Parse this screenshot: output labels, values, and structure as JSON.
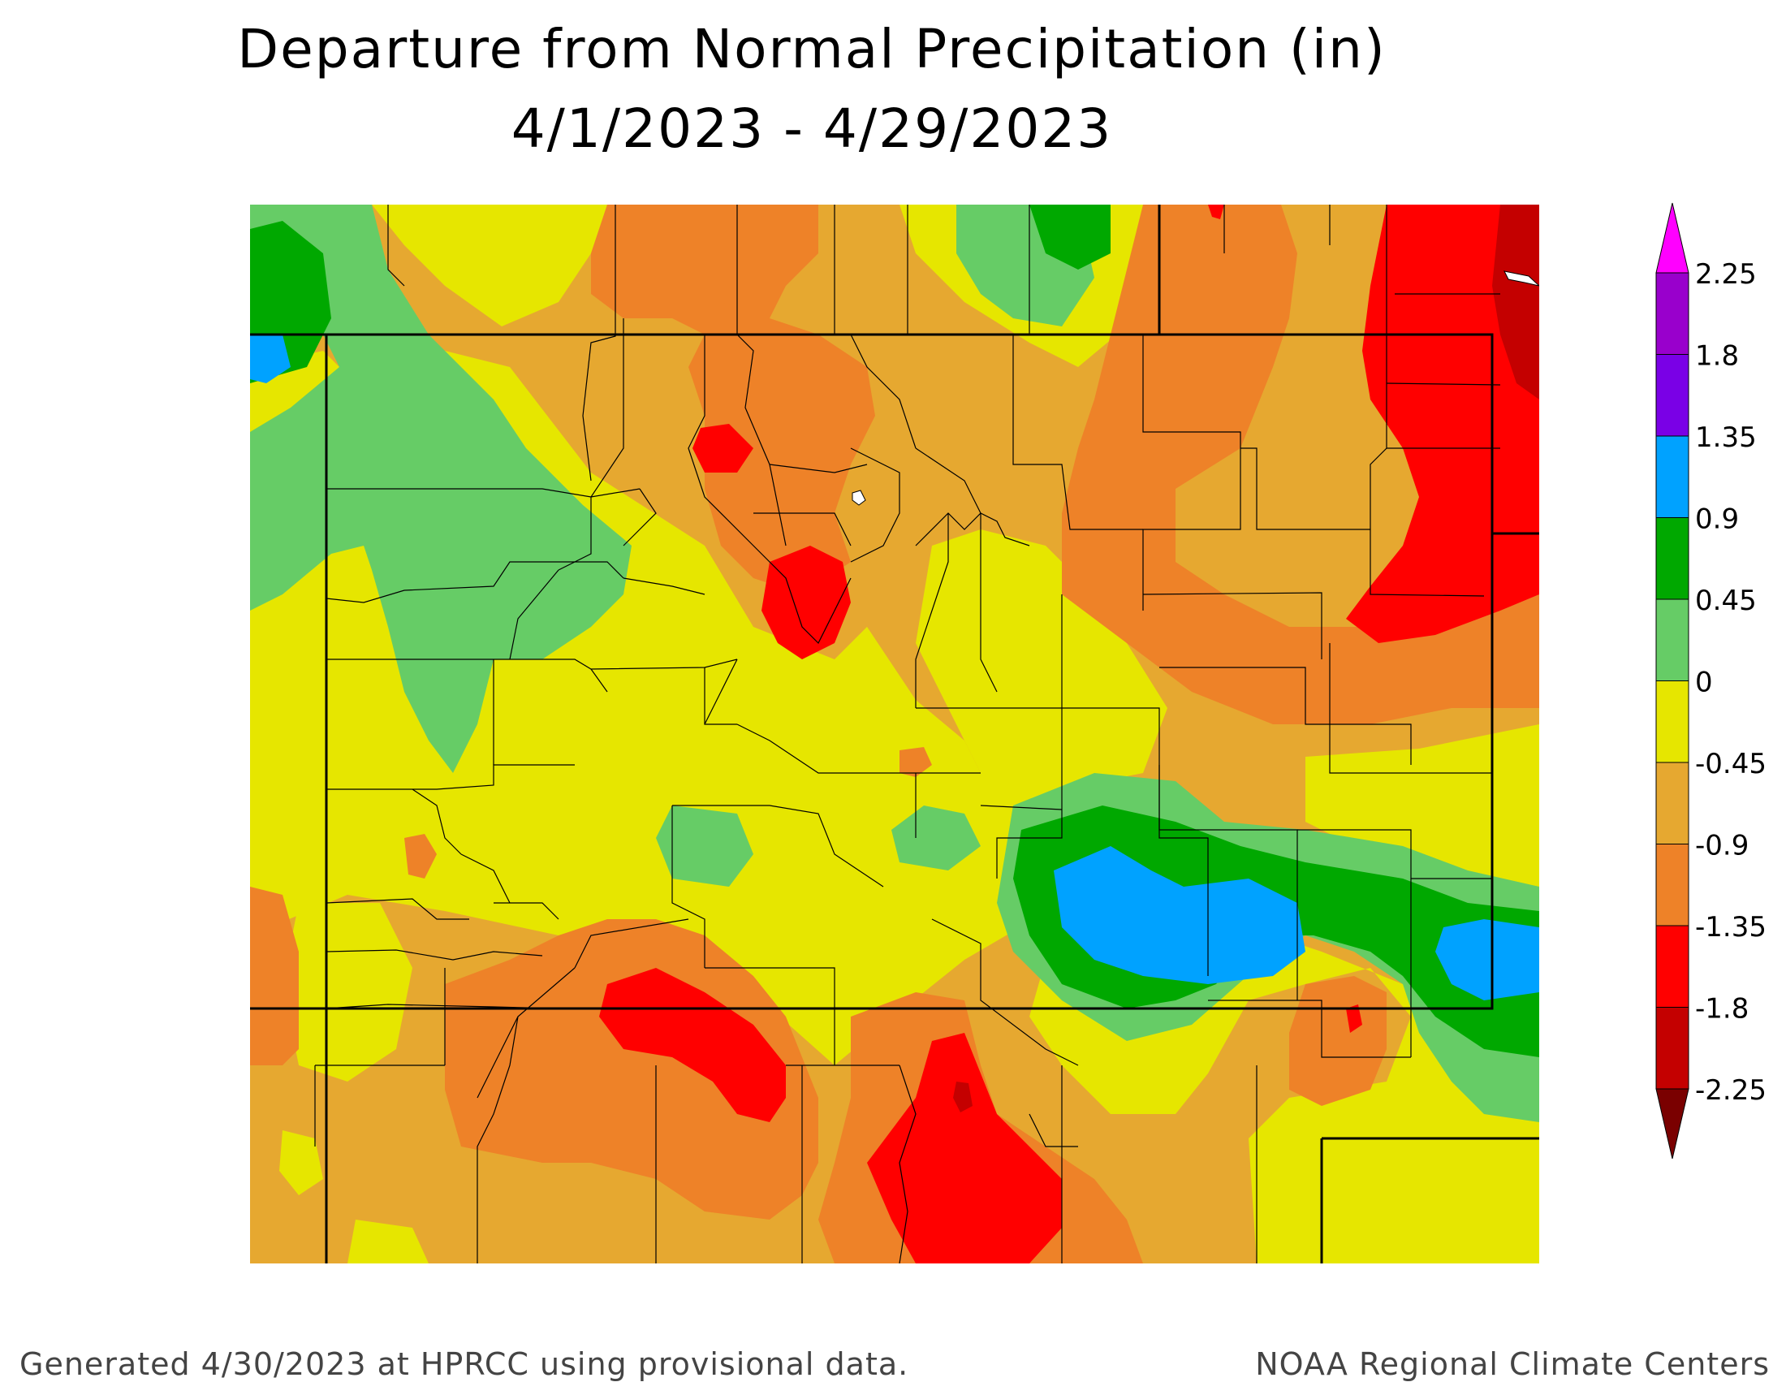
{
  "title": "Departure from Normal Precipitation (in)",
  "subtitle": "4/1/2023 - 4/29/2023",
  "footer": {
    "left": "Generated 4/30/2023 at HPRCC using provisional data.",
    "right": "NOAA Regional Climate Centers"
  },
  "legend": {
    "labels": [
      "2.25",
      "1.8",
      "1.35",
      "0.9",
      "0.45",
      "0",
      "-0.45",
      "-0.9",
      "-1.35",
      "-1.8",
      "-2.25"
    ],
    "colors": [
      "#ff00ff",
      "#9900cc",
      "#7a00e6",
      "#00a2ff",
      "#00a800",
      "#66cc66",
      "#e6e600",
      "#e6a830",
      "#ee8228",
      "#ff0000",
      "#c40000",
      "#7a0000"
    ]
  },
  "map": {
    "region": "Colorado",
    "colors": {
      "green_light": "#66cc66",
      "green_dark": "#00a800",
      "blue": "#00a2ff",
      "yellow": "#e6e600",
      "tan": "#e6a830",
      "orange": "#ee8228",
      "red": "#ff0000",
      "dark_red": "#c40000"
    }
  }
}
